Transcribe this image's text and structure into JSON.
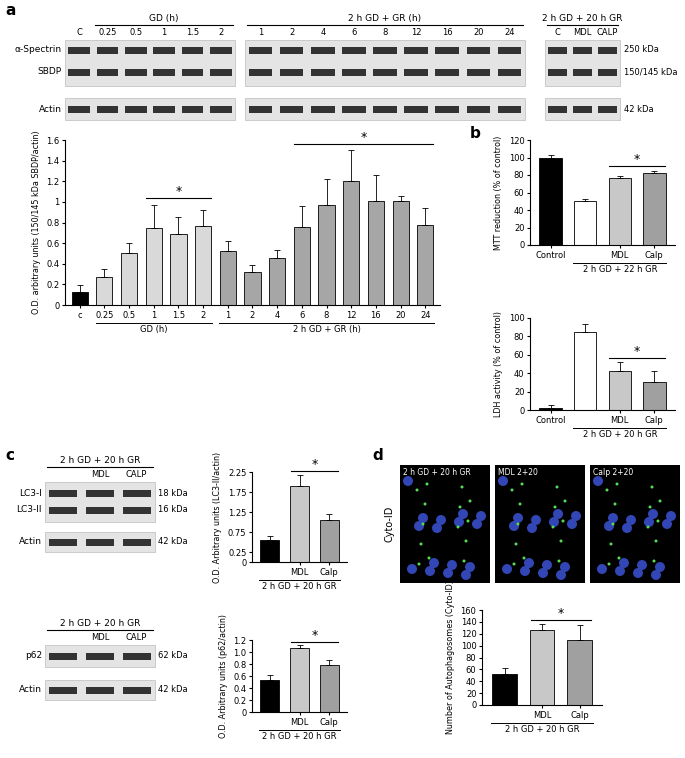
{
  "panel_labels": [
    "a",
    "b",
    "c",
    "d"
  ],
  "blots": [
    {
      "row_labels": [
        "α-Spectrin",
        "SBDP",
        "Actin"
      ],
      "marker_labels": [
        "250 kDa",
        "150/145 kDa",
        "42 kDa"
      ],
      "strips": [
        [
          {
            "title": null,
            "lanes": [
              "C"
            ]
          },
          {
            "title": "GD (h)",
            "lanes": [
              "0.25",
              "0.5",
              "1",
              "1.5",
              "2"
            ]
          }
        ],
        [
          {
            "title": "2 h GD + GR (h)",
            "lanes": [
              "1",
              "2",
              "4",
              "6",
              "8",
              "12",
              "16",
              "20",
              "24"
            ]
          }
        ],
        [
          {
            "title": "2 h GD + 20 h GR",
            "lanes": [
              "C",
              "MDL",
              "CALP"
            ]
          }
        ]
      ]
    },
    {
      "row_labels": [
        "LC3-I",
        "LC3-II",
        "Actin"
      ],
      "marker_labels": [
        "18 kDa",
        "16 kDa",
        "42 kDa"
      ],
      "strips": [
        [
          {
            "title": "2 h GD + 20 h GR",
            "lanes": [
              null,
              "MDL",
              "CALP"
            ]
          }
        ]
      ]
    },
    {
      "row_labels": [
        "p62",
        "Actin"
      ],
      "marker_labels": [
        "62 kDa",
        "42 kDa"
      ],
      "strips": [
        [
          {
            "title": "2 h GD + 20 h GR",
            "lanes": [
              null,
              "MDL",
              "CALP"
            ]
          }
        ]
      ]
    }
  ],
  "images": {
    "side_label": "Cyto-ID",
    "titles": [
      "2 h GD + 20 h GR",
      "MDL 2+20",
      "Calp 2+20"
    ]
  },
  "chart_data": [
    {
      "type": "bar",
      "ylabel": "O.D. arbitrary units (150/145 kDa SBDP/actin)",
      "categories": [
        "c",
        "0.25",
        "0.5",
        "1",
        "1.5",
        "2",
        "1",
        "2",
        "4",
        "6",
        "8",
        "12",
        "16",
        "20",
        "24"
      ],
      "values": [
        0.13,
        0.27,
        0.5,
        0.75,
        0.69,
        0.77,
        0.52,
        0.32,
        0.46,
        0.76,
        0.97,
        1.2,
        1.01,
        1.01,
        0.78
      ],
      "errors": [
        0.06,
        0.08,
        0.1,
        0.22,
        0.16,
        0.15,
        0.1,
        0.07,
        0.07,
        0.2,
        0.25,
        0.3,
        0.25,
        0.05,
        0.16
      ],
      "colors": [
        "#000000",
        "#d9d9d9",
        "#d9d9d9",
        "#d9d9d9",
        "#d9d9d9",
        "#d9d9d9",
        "#a6a6a6",
        "#a6a6a6",
        "#a6a6a6",
        "#a6a6a6",
        "#a6a6a6",
        "#a6a6a6",
        "#a6a6a6",
        "#a6a6a6",
        "#a6a6a6"
      ],
      "ylim": [
        0,
        1.6
      ],
      "yticks": [
        0,
        0.2,
        0.4,
        0.6,
        0.8,
        1,
        1.2,
        1.4,
        1.6
      ],
      "groups": [
        {
          "label": "GD (h)",
          "start": 1,
          "end": 5
        },
        {
          "label": "2 h GD + GR (h)",
          "start": 6,
          "end": 14
        }
      ],
      "significance": [
        {
          "start": 3,
          "end": 5,
          "label": "*"
        },
        {
          "start": 9,
          "end": 14,
          "label": "*"
        }
      ]
    },
    {
      "type": "bar",
      "ylabel": "MTT reduction (% of control)",
      "categories": [
        "Control",
        null,
        "MDL",
        "Calp"
      ],
      "values": [
        100,
        50,
        77,
        82
      ],
      "errors": [
        3,
        3,
        2,
        3
      ],
      "colors": [
        "#000000",
        "#ffffff",
        "#c8c8c8",
        "#a0a0a0"
      ],
      "ylim": [
        0,
        120
      ],
      "yticks": [
        0,
        20,
        40,
        60,
        80,
        100,
        120
      ],
      "groups": [
        {
          "label": "2 h GD + 22 h GR",
          "start": 1,
          "end": 3
        }
      ],
      "significance": [
        {
          "start": 2,
          "end": 3,
          "label": "*"
        }
      ]
    },
    {
      "type": "bar",
      "ylabel": "LDH activity (% of control)",
      "categories": [
        "Control",
        null,
        "MDL",
        "Calp"
      ],
      "values": [
        2,
        85,
        42,
        30
      ],
      "errors": [
        3,
        8,
        10,
        12
      ],
      "colors": [
        "#000000",
        "#ffffff",
        "#c8c8c8",
        "#a0a0a0"
      ],
      "ylim": [
        0,
        100
      ],
      "yticks": [
        0,
        20,
        40,
        60,
        80,
        100
      ],
      "groups": [
        {
          "label": "2 h GD + 20 h GR",
          "start": 1,
          "end": 3
        }
      ],
      "significance": [
        {
          "start": 2,
          "end": 3,
          "label": "*"
        }
      ]
    },
    {
      "type": "bar",
      "ylabel": "O.D. Arbitrary units (LC3-II/actin)",
      "categories": [
        null,
        "MDL",
        "Calp"
      ],
      "values": [
        0.55,
        1.9,
        1.05
      ],
      "errors": [
        0.1,
        0.28,
        0.15
      ],
      "colors": [
        "#000000",
        "#c8c8c8",
        "#a0a0a0"
      ],
      "ylim": [
        0,
        2.25
      ],
      "yticks": [
        0,
        0.25,
        0.75,
        1.25,
        1.75,
        2.25
      ],
      "groups": [
        {
          "label": "2 h GD + 20 h GR",
          "start": 0,
          "end": 2
        }
      ],
      "significance": [
        {
          "start": 1,
          "end": 2,
          "label": "*"
        }
      ]
    },
    {
      "type": "bar",
      "ylabel": "O.D. Arbitrary units (p62/actin)",
      "categories": [
        null,
        "MDL",
        "Calp"
      ],
      "values": [
        0.54,
        1.07,
        0.78
      ],
      "errors": [
        0.08,
        0.05,
        0.08
      ],
      "colors": [
        "#000000",
        "#c8c8c8",
        "#a0a0a0"
      ],
      "ylim": [
        0,
        1.2
      ],
      "yticks": [
        0,
        0.2,
        0.4,
        0.6,
        0.8,
        {
          "value": 1,
          "label": "1.0"
        },
        1.2
      ],
      "groups": [
        {
          "label": "2 h GD + 20 h GR",
          "start": 0,
          "end": 2
        }
      ],
      "significance": [
        {
          "start": 1,
          "end": 2,
          "label": "*"
        }
      ]
    },
    {
      "type": "bar",
      "ylabel": "Number of Autophagosomes (Cyto-ID)",
      "categories": [
        null,
        "MDL",
        "Calp"
      ],
      "values": [
        53,
        127,
        110
      ],
      "errors": [
        10,
        10,
        25
      ],
      "colors": [
        "#000000",
        "#c8c8c8",
        "#a0a0a0"
      ],
      "ylim": [
        0,
        160
      ],
      "yticks": [
        0,
        20,
        40,
        60,
        80,
        100,
        120,
        140,
        160
      ],
      "groups": [
        {
          "label": "2 h GD + 20 h GR",
          "start": 0,
          "end": 2
        }
      ],
      "significance": [
        {
          "start": 1,
          "end": 2,
          "label": "*"
        }
      ]
    }
  ]
}
